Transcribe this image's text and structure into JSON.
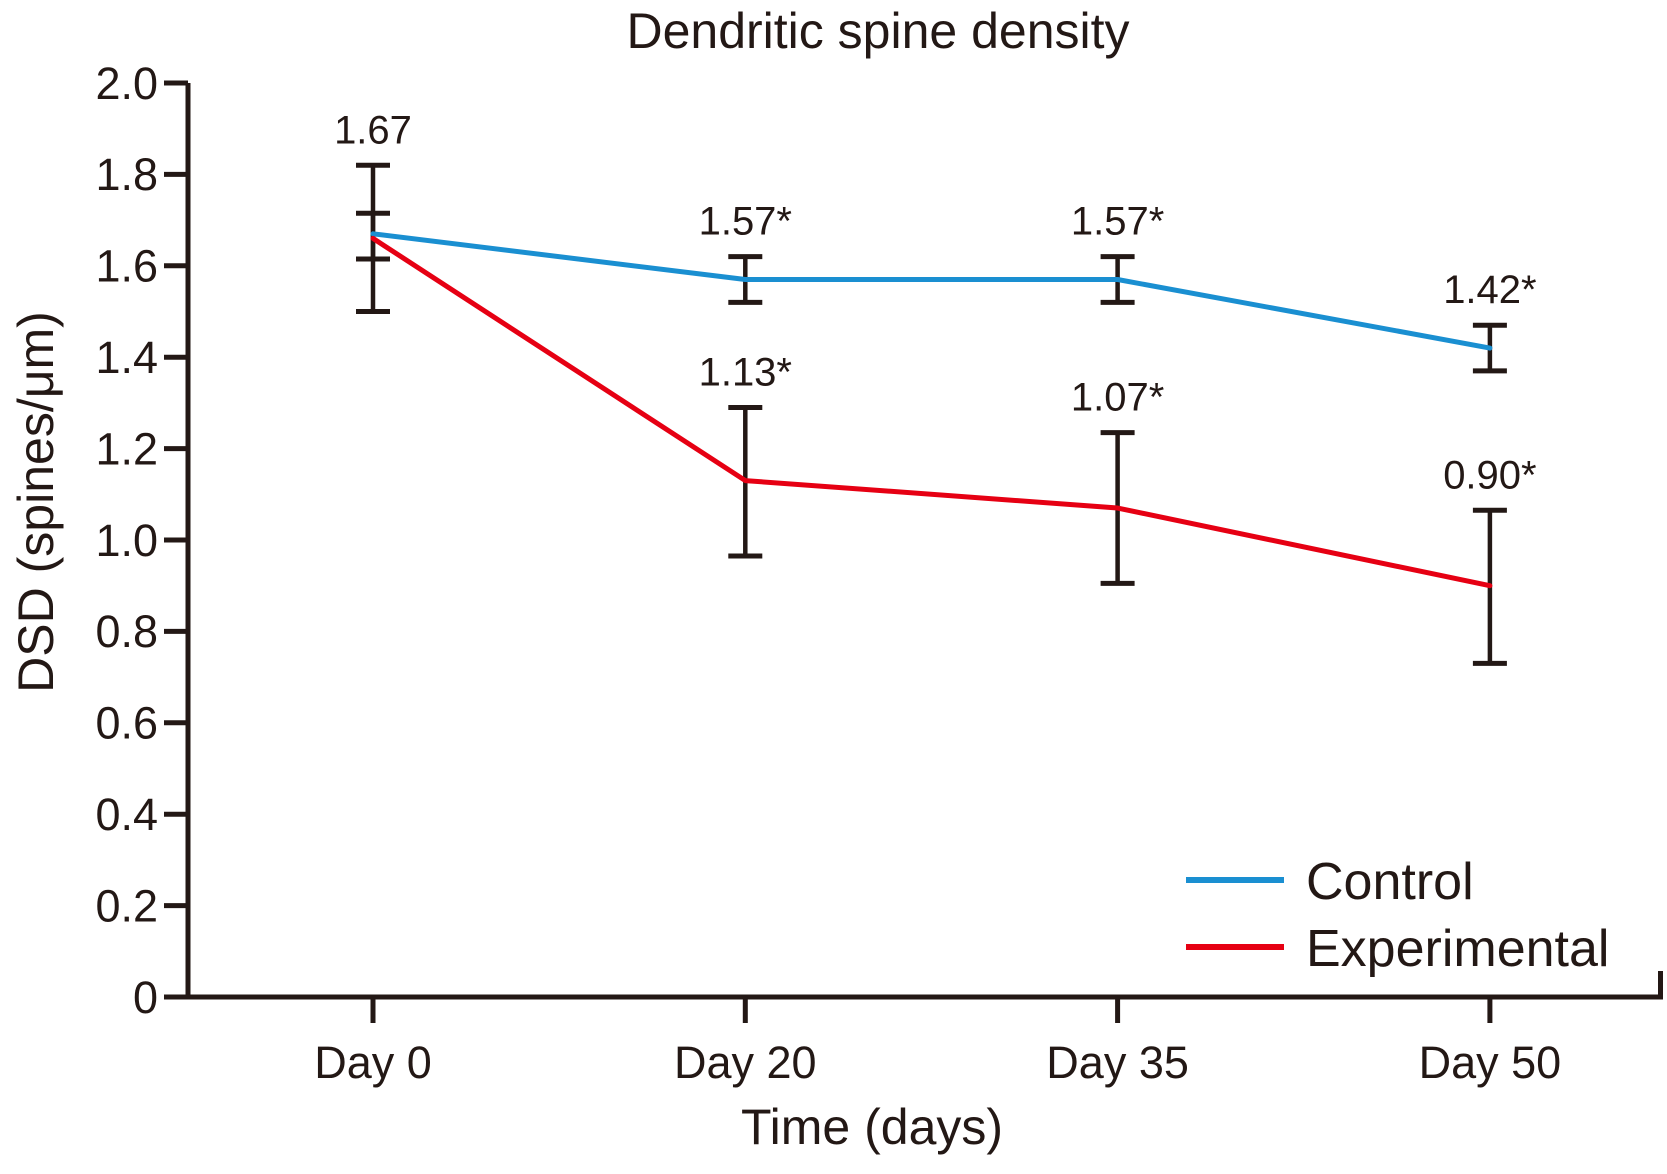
{
  "chart_data": {
    "type": "line",
    "title": "Dendritic spine density",
    "xlabel": "Time (days)",
    "ylabel": "DSD (spines/μm)",
    "categories": [
      "Day 0",
      "Day 20",
      "Day 35",
      "Day 50"
    ],
    "ylim": [
      0,
      2.0
    ],
    "ytick_labels": [
      "0",
      "0.2",
      "0.4",
      "0.6",
      "0.8",
      "1.0",
      "1.2",
      "1.4",
      "1.6",
      "1.8",
      "2.0"
    ],
    "grid": false,
    "legend_position": "lower-right",
    "axis_color": "#231815",
    "background_color": "#ffffff",
    "series": [
      {
        "name": "Control",
        "color": "#1a8fd1",
        "values": [
          1.67,
          1.57,
          1.57,
          1.42
        ],
        "error_low": [
          1.615,
          1.52,
          1.52,
          1.37
        ],
        "error_high": [
          1.715,
          1.62,
          1.62,
          1.47
        ],
        "point_labels": [
          "1.67",
          "1.57*",
          "1.57*",
          "1.42*"
        ]
      },
      {
        "name": "Experimental",
        "color": "#e60013",
        "values": [
          1.66,
          1.13,
          1.07,
          0.9
        ],
        "error_low": [
          1.5,
          0.965,
          0.905,
          0.73
        ],
        "error_high": [
          1.82,
          1.29,
          1.235,
          1.065
        ],
        "point_labels": [
          "",
          "1.13*",
          "1.07*",
          "0.90*"
        ]
      }
    ]
  }
}
